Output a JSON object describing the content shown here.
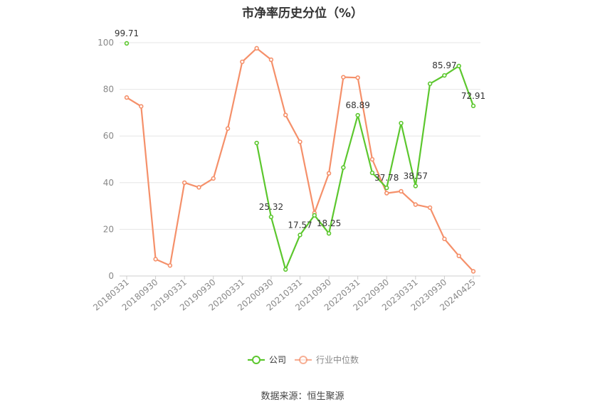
{
  "chart_data": {
    "type": "line",
    "title": "市净率历史分位（%）",
    "source": "数据来源：恒生聚源",
    "xlabel": "",
    "ylabel": "",
    "ylim": [
      0,
      100
    ],
    "yticks": [
      0,
      20,
      40,
      60,
      80,
      100
    ],
    "grid": true,
    "legend_position": "bottom",
    "x": [
      "20180331",
      "20180630",
      "20180930",
      "20181231",
      "20190331",
      "20190630",
      "20190930",
      "20191231",
      "20200331",
      "20200630",
      "20200930",
      "20201231",
      "20210331",
      "20210630",
      "20210930",
      "20211231",
      "20220331",
      "20220630",
      "20220930",
      "20221231",
      "20230331",
      "20230630",
      "20230930",
      "20231231",
      "20240425"
    ],
    "xtick_labels": [
      "20180331",
      "20180930",
      "20190331",
      "20190930",
      "20200331",
      "20200930",
      "20210331",
      "20210930",
      "20220331",
      "20220930",
      "20230331",
      "20230930",
      "20240425"
    ],
    "xtick_indices": [
      0,
      2,
      4,
      6,
      8,
      10,
      12,
      14,
      16,
      18,
      20,
      22,
      24
    ],
    "series": [
      {
        "name": "公司",
        "color": "#5cc72e",
        "values": [
          99.71,
          null,
          null,
          null,
          null,
          null,
          null,
          null,
          null,
          57.0,
          25.32,
          2.8,
          17.57,
          26.0,
          18.25,
          46.5,
          68.89,
          44.2,
          37.78,
          65.5,
          38.57,
          82.4,
          85.97,
          90.0,
          72.91
        ],
        "labels": {
          "0": "99.71",
          "10": "25.32",
          "12": "17.57",
          "14": "18.25",
          "16": "68.89",
          "18": "37.78",
          "20": "38.57",
          "22": "85.97",
          "24": "72.91"
        }
      },
      {
        "name": "行业中位数",
        "color": "#f5906a",
        "values": [
          76.5,
          72.7,
          7.2,
          4.5,
          40.0,
          38.0,
          41.8,
          63.2,
          91.8,
          97.6,
          92.7,
          69.0,
          57.5,
          27.0,
          44.0,
          85.2,
          85.0,
          50.0,
          35.5,
          36.3,
          30.6,
          29.3,
          15.9,
          8.6,
          2.0
        ]
      }
    ]
  }
}
